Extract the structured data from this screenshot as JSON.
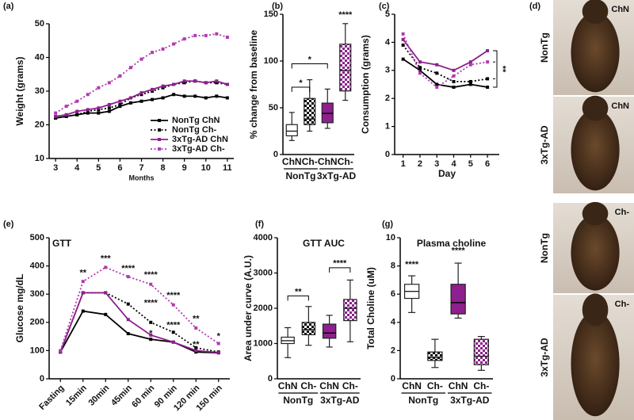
{
  "chart_data": [
    {
      "type": "line",
      "label": "(a)",
      "ylabel": "Weight (grams)",
      "xlabel": "Months",
      "x": [
        3,
        3.5,
        4,
        4.5,
        5,
        5.5,
        6,
        6.5,
        7,
        7.5,
        8,
        8.5,
        9,
        9.5,
        10,
        10.5,
        11
      ],
      "xlim": [
        2.7,
        11.3
      ],
      "xticks": [
        3,
        4,
        5,
        6,
        7,
        8,
        9,
        10,
        11
      ],
      "ylim": [
        10,
        50
      ],
      "yticks": [
        10,
        20,
        30,
        40,
        50
      ],
      "legend": "lower right",
      "series": [
        {
          "name": "NonTg ChN",
          "color": "#000000",
          "style": "solid",
          "values": [
            22,
            22.5,
            23,
            23.5,
            23.5,
            24,
            25.5,
            26.5,
            27,
            27.5,
            28,
            29,
            28.5,
            28.5,
            28,
            28.5,
            28
          ]
        },
        {
          "name": "NonTg Ch-",
          "color": "#000000",
          "style": "dotted",
          "values": [
            22,
            22.5,
            23,
            24,
            24.5,
            25,
            26,
            28,
            29,
            30,
            31,
            32,
            32.5,
            33,
            32.5,
            32.5,
            32
          ]
        },
        {
          "name": "3xTg-AD ChN",
          "color": "#8e1f8e",
          "style": "solid",
          "values": [
            22.5,
            23,
            24,
            24.5,
            25,
            26,
            27,
            28,
            29.5,
            30.5,
            31.5,
            32,
            33,
            33,
            32.5,
            33,
            32
          ]
        },
        {
          "name": "3xTg-AD Ch-",
          "color": "#b03ab0",
          "style": "dotted",
          "values": [
            23.5,
            25.5,
            27,
            29,
            31,
            32.5,
            34.5,
            37,
            39.5,
            41.5,
            42.5,
            44,
            45.5,
            46.5,
            46.5,
            47,
            46
          ]
        }
      ]
    },
    {
      "type": "box",
      "label": "(b)",
      "ylabel": "% change from baseline",
      "categories": [
        "ChN",
        "Ch-",
        "ChN",
        "Ch-"
      ],
      "groups": [
        "NonTg",
        "3xTg-AD"
      ],
      "ylim": [
        0,
        150
      ],
      "yticks": [
        0,
        50,
        100,
        150
      ],
      "annotations": [
        "*",
        "*",
        "****"
      ],
      "boxes": [
        {
          "color": "#ffffff",
          "checkered": false,
          "min": 15,
          "q1": 20,
          "median": 25,
          "q3": 32,
          "max": 45
        },
        {
          "color": "#000000",
          "checkered": true,
          "min": 25,
          "q1": 32,
          "median": 38,
          "q3": 60,
          "max": 80
        },
        {
          "color": "#8e1f8e",
          "checkered": false,
          "min": 28,
          "q1": 34,
          "median": 44,
          "q3": 55,
          "max": 70
        },
        {
          "color": "#8e1f8e",
          "checkered": true,
          "min": 58,
          "q1": 68,
          "median": 90,
          "q3": 118,
          "max": 140
        }
      ]
    },
    {
      "type": "line",
      "label": "(c)",
      "ylabel": "Consumption (grams)",
      "xlabel": "Day",
      "x": [
        1,
        2,
        3,
        4,
        5,
        6
      ],
      "xlim": [
        0.5,
        6.7
      ],
      "xticks": [
        1,
        2,
        3,
        4,
        5,
        6
      ],
      "ylim": [
        0,
        5
      ],
      "yticks": [
        0,
        1,
        2,
        3,
        4,
        5
      ],
      "annotations": [
        "**"
      ],
      "series": [
        {
          "color": "#000000",
          "style": "solid",
          "values": [
            3.4,
            3.0,
            2.5,
            2.4,
            2.5,
            2.4
          ]
        },
        {
          "color": "#000000",
          "style": "dotted",
          "values": [
            3.9,
            3.1,
            2.9,
            2.6,
            2.6,
            2.7
          ]
        },
        {
          "color": "#8e1f8e",
          "style": "solid",
          "values": [
            4.1,
            3.3,
            3.2,
            3.0,
            3.3,
            3.7
          ]
        },
        {
          "color": "#b03ab0",
          "style": "dotted",
          "values": [
            4.3,
            2.9,
            2.4,
            2.8,
            3.2,
            3.3
          ]
        }
      ]
    },
    {
      "type": "line",
      "label": "(e)",
      "title": "GTT",
      "ylabel": "Glucose mg/dL",
      "categories": [
        "Fasting",
        "15min",
        "30min",
        "45min",
        "60 min",
        "90 min",
        "120 min",
        "150 min"
      ],
      "ylim": [
        0,
        500
      ],
      "yticks": [
        0,
        100,
        200,
        300,
        400,
        500
      ],
      "annotations": [
        "**",
        "***",
        "****",
        "****",
        "****",
        "**",
        "*",
        "****",
        "****",
        "**",
        "*"
      ],
      "series": [
        {
          "color": "#000000",
          "style": "solid",
          "values": [
            95,
            240,
            228,
            160,
            140,
            130,
            95,
            92
          ]
        },
        {
          "color": "#000000",
          "style": "dotted",
          "values": [
            95,
            305,
            305,
            265,
            200,
            165,
            110,
            95
          ]
        },
        {
          "color": "#8e1f8e",
          "style": "solid",
          "values": [
            95,
            305,
            305,
            210,
            155,
            130,
            100,
            93
          ]
        },
        {
          "color": "#b03ab0",
          "style": "dotted",
          "values": [
            100,
            345,
            395,
            362,
            335,
            262,
            180,
            125
          ]
        }
      ]
    },
    {
      "type": "box",
      "label": "(f)",
      "title": "GTT AUC",
      "ylabel": "Area under curve (A.U.)",
      "categories": [
        "ChN",
        "Ch-",
        "ChN",
        "Ch-"
      ],
      "groups": [
        "NonTg",
        "3xTg-AD"
      ],
      "ylim": [
        0,
        4000
      ],
      "yticks": [
        0,
        1000,
        2000,
        3000,
        4000
      ],
      "annotations": [
        "**",
        "****"
      ],
      "boxes": [
        {
          "color": "#ffffff",
          "checkered": false,
          "min": 600,
          "q1": 1000,
          "median": 1080,
          "q3": 1180,
          "max": 1450
        },
        {
          "color": "#000000",
          "checkered": true,
          "min": 950,
          "q1": 1250,
          "median": 1400,
          "q3": 1600,
          "max": 2050
        },
        {
          "color": "#8e1f8e",
          "checkered": false,
          "min": 900,
          "q1": 1150,
          "median": 1300,
          "q3": 1550,
          "max": 1800
        },
        {
          "color": "#8e1f8e",
          "checkered": true,
          "min": 1050,
          "q1": 1650,
          "median": 2000,
          "q3": 2250,
          "max": 2800
        }
      ]
    },
    {
      "type": "box",
      "label": "(g)",
      "title": "Plasma choline",
      "ylabel": "Total Choline (uM)",
      "categories": [
        "ChN",
        "Ch-",
        "ChN",
        "Ch-"
      ],
      "groups": [
        "NonTg",
        "3xTg-AD"
      ],
      "ylim": [
        0,
        10
      ],
      "yticks": [
        0,
        2,
        4,
        6,
        8,
        10
      ],
      "annotations": [
        "****",
        "****"
      ],
      "boxes": [
        {
          "color": "#ffffff",
          "checkered": false,
          "min": 4.7,
          "q1": 5.7,
          "median": 6.2,
          "q3": 6.7,
          "max": 7.3
        },
        {
          "color": "#000000",
          "checkered": true,
          "min": 0.8,
          "q1": 1.3,
          "median": 1.5,
          "q3": 1.9,
          "max": 2.8
        },
        {
          "color": "#8e1f8e",
          "checkered": false,
          "min": 4.3,
          "q1": 4.6,
          "median": 5.4,
          "q3": 6.7,
          "max": 8.2
        },
        {
          "color": "#8e1f8e",
          "checkered": true,
          "min": 0.6,
          "q1": 1.0,
          "median": 1.6,
          "q3": 2.8,
          "max": 3.0
        }
      ]
    }
  ],
  "photos": {
    "label": "(d)",
    "panels": [
      {
        "tag": "ChN",
        "group": "NonTg"
      },
      {
        "tag": "ChN",
        "group": "3xTg-AD"
      },
      {
        "tag": "Ch-",
        "group": "NonTg"
      },
      {
        "tag": "Ch-",
        "group": "3xTg-AD"
      }
    ]
  }
}
